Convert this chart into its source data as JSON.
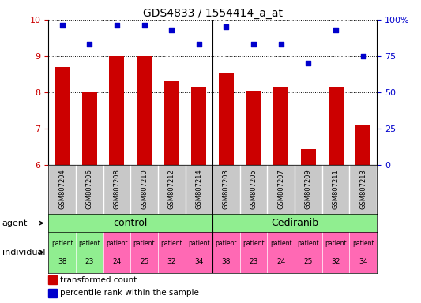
{
  "title": "GDS4833 / 1554414_a_at",
  "samples": [
    "GSM807204",
    "GSM807206",
    "GSM807208",
    "GSM807210",
    "GSM807212",
    "GSM807214",
    "GSM807203",
    "GSM807205",
    "GSM807207",
    "GSM807209",
    "GSM807211",
    "GSM807213"
  ],
  "bar_values": [
    8.7,
    8.0,
    9.0,
    9.0,
    8.3,
    8.15,
    8.55,
    8.05,
    8.15,
    6.45,
    8.15,
    7.1
  ],
  "dot_values": [
    96,
    83,
    96,
    96,
    93,
    83,
    95,
    83,
    83,
    70,
    93,
    75
  ],
  "ylim": [
    6,
    10
  ],
  "y2lim": [
    0,
    100
  ],
  "y2ticks": [
    0,
    25,
    50,
    75,
    100
  ],
  "y2ticklabels": [
    "0",
    "25",
    "50",
    "75",
    "100%"
  ],
  "yticks": [
    6,
    7,
    8,
    9,
    10
  ],
  "bar_color": "#cc0000",
  "dot_color": "#0000cc",
  "agent_labels": [
    "control",
    "Cediranib"
  ],
  "individual_labels_top": [
    "patient",
    "patient",
    "patient",
    "patient",
    "patient",
    "patient",
    "patient",
    "patient",
    "patient",
    "patient",
    "patient",
    "patient"
  ],
  "individual_labels_bot": [
    "38",
    "23",
    "24",
    "25",
    "32",
    "34",
    "38",
    "23",
    "24",
    "25",
    "32",
    "34"
  ],
  "individual_colors": [
    "#90ee90",
    "#90ee90",
    "#ff69b4",
    "#ff69b4",
    "#ff69b4",
    "#ff69b4",
    "#ff69b4",
    "#ff69b4",
    "#ff69b4",
    "#ff69b4",
    "#ff69b4",
    "#ff69b4"
  ],
  "agent_color": "#90ee90",
  "sample_bg_color": "#c8c8c8",
  "legend_bar_label": "transformed count",
  "legend_dot_label": "percentile rank within the sample",
  "left_label_agent": "agent",
  "left_label_individual": "individual"
}
